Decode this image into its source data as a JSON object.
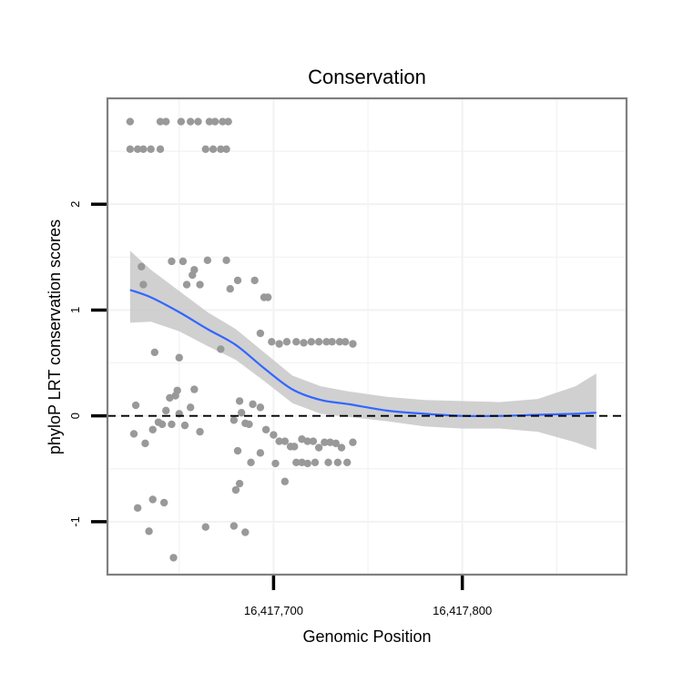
{
  "chart_data": {
    "type": "scatter",
    "title": "Conservation",
    "xlabel": "Genomic Position",
    "ylabel": "phyloP LRT conservation scores",
    "xlim": [
      16417612,
      16417887
    ],
    "ylim": [
      -1.5,
      3.0
    ],
    "x_ticks": [
      {
        "value": 16417700,
        "label": "16,417,700"
      },
      {
        "value": 16417800,
        "label": "16,417,800"
      }
    ],
    "y_ticks": [
      {
        "value": -1,
        "label": "-1"
      },
      {
        "value": 0,
        "label": "0"
      },
      {
        "value": 1,
        "label": "1"
      },
      {
        "value": 2,
        "label": "2"
      }
    ],
    "reference_line": {
      "y": 0,
      "style": "dashed"
    },
    "grid": true,
    "colors": {
      "points": "#999999",
      "smooth": "#3366FF",
      "ribbon": "#C8C8C8",
      "panel_border": "#7F7F7F",
      "grid": "#F2F2F2"
    },
    "points": [
      {
        "x": 16417624,
        "y": 2.78
      },
      {
        "x": 16417640,
        "y": 2.78
      },
      {
        "x": 16417643,
        "y": 2.78
      },
      {
        "x": 16417651,
        "y": 2.78
      },
      {
        "x": 16417656,
        "y": 2.78
      },
      {
        "x": 16417660,
        "y": 2.78
      },
      {
        "x": 16417666,
        "y": 2.78
      },
      {
        "x": 16417669,
        "y": 2.78
      },
      {
        "x": 16417673,
        "y": 2.78
      },
      {
        "x": 16417676,
        "y": 2.78
      },
      {
        "x": 16417624,
        "y": 2.52
      },
      {
        "x": 16417628,
        "y": 2.52
      },
      {
        "x": 16417631,
        "y": 2.52
      },
      {
        "x": 16417635,
        "y": 2.52
      },
      {
        "x": 16417640,
        "y": 2.52
      },
      {
        "x": 16417664,
        "y": 2.52
      },
      {
        "x": 16417668,
        "y": 2.52
      },
      {
        "x": 16417672,
        "y": 2.52
      },
      {
        "x": 16417675,
        "y": 2.52
      },
      {
        "x": 16417630,
        "y": 1.41
      },
      {
        "x": 16417631,
        "y": 1.24
      },
      {
        "x": 16417646,
        "y": 1.46
      },
      {
        "x": 16417652,
        "y": 1.46
      },
      {
        "x": 16417658,
        "y": 1.38
      },
      {
        "x": 16417657,
        "y": 1.33
      },
      {
        "x": 16417654,
        "y": 1.24
      },
      {
        "x": 16417661,
        "y": 1.24
      },
      {
        "x": 16417665,
        "y": 1.47
      },
      {
        "x": 16417675,
        "y": 1.47
      },
      {
        "x": 16417677,
        "y": 1.2
      },
      {
        "x": 16417681,
        "y": 1.28
      },
      {
        "x": 16417690,
        "y": 1.28
      },
      {
        "x": 16417695,
        "y": 1.12
      },
      {
        "x": 16417697,
        "y": 1.12
      },
      {
        "x": 16417672,
        "y": 0.63
      },
      {
        "x": 16417693,
        "y": 0.78
      },
      {
        "x": 16417699,
        "y": 0.7
      },
      {
        "x": 16417703,
        "y": 0.68
      },
      {
        "x": 16417707,
        "y": 0.7
      },
      {
        "x": 16417712,
        "y": 0.7
      },
      {
        "x": 16417716,
        "y": 0.69
      },
      {
        "x": 16417720,
        "y": 0.7
      },
      {
        "x": 16417724,
        "y": 0.7
      },
      {
        "x": 16417728,
        "y": 0.7
      },
      {
        "x": 16417731,
        "y": 0.7
      },
      {
        "x": 16417735,
        "y": 0.7
      },
      {
        "x": 16417738,
        "y": 0.7
      },
      {
        "x": 16417742,
        "y": 0.68
      },
      {
        "x": 16417637,
        "y": 0.6
      },
      {
        "x": 16417650,
        "y": 0.55
      },
      {
        "x": 16417627,
        "y": 0.1
      },
      {
        "x": 16417626,
        "y": -0.17
      },
      {
        "x": 16417632,
        "y": -0.26
      },
      {
        "x": 16417636,
        "y": -0.13
      },
      {
        "x": 16417639,
        "y": -0.06
      },
      {
        "x": 16417641,
        "y": -0.08
      },
      {
        "x": 16417643,
        "y": 0.05
      },
      {
        "x": 16417645,
        "y": 0.17
      },
      {
        "x": 16417646,
        "y": -0.08
      },
      {
        "x": 16417648,
        "y": 0.19
      },
      {
        "x": 16417649,
        "y": 0.24
      },
      {
        "x": 16417650,
        "y": 0.02
      },
      {
        "x": 16417653,
        "y": -0.09
      },
      {
        "x": 16417656,
        "y": 0.08
      },
      {
        "x": 16417658,
        "y": 0.25
      },
      {
        "x": 16417661,
        "y": -0.15
      },
      {
        "x": 16417679,
        "y": -0.04
      },
      {
        "x": 16417682,
        "y": 0.14
      },
      {
        "x": 16417683,
        "y": 0.03
      },
      {
        "x": 16417685,
        "y": -0.07
      },
      {
        "x": 16417687,
        "y": -0.08
      },
      {
        "x": 16417689,
        "y": 0.11
      },
      {
        "x": 16417693,
        "y": 0.08
      },
      {
        "x": 16417696,
        "y": -0.13
      },
      {
        "x": 16417700,
        "y": -0.18
      },
      {
        "x": 16417703,
        "y": -0.24
      },
      {
        "x": 16417706,
        "y": -0.24
      },
      {
        "x": 16417709,
        "y": -0.29
      },
      {
        "x": 16417711,
        "y": -0.29
      },
      {
        "x": 16417715,
        "y": -0.22
      },
      {
        "x": 16417718,
        "y": -0.24
      },
      {
        "x": 16417721,
        "y": -0.24
      },
      {
        "x": 16417724,
        "y": -0.3
      },
      {
        "x": 16417727,
        "y": -0.25
      },
      {
        "x": 16417730,
        "y": -0.25
      },
      {
        "x": 16417733,
        "y": -0.26
      },
      {
        "x": 16417736,
        "y": -0.3
      },
      {
        "x": 16417742,
        "y": -0.25
      },
      {
        "x": 16417681,
        "y": -0.33
      },
      {
        "x": 16417688,
        "y": -0.44
      },
      {
        "x": 16417693,
        "y": -0.35
      },
      {
        "x": 16417701,
        "y": -0.45
      },
      {
        "x": 16417712,
        "y": -0.44
      },
      {
        "x": 16417715,
        "y": -0.44
      },
      {
        "x": 16417718,
        "y": -0.45
      },
      {
        "x": 16417722,
        "y": -0.44
      },
      {
        "x": 16417729,
        "y": -0.44
      },
      {
        "x": 16417734,
        "y": -0.44
      },
      {
        "x": 16417739,
        "y": -0.44
      },
      {
        "x": 16417706,
        "y": -0.62
      },
      {
        "x": 16417682,
        "y": -0.64
      },
      {
        "x": 16417680,
        "y": -0.7
      },
      {
        "x": 16417628,
        "y": -0.87
      },
      {
        "x": 16417636,
        "y": -0.79
      },
      {
        "x": 16417642,
        "y": -0.82
      },
      {
        "x": 16417634,
        "y": -1.09
      },
      {
        "x": 16417664,
        "y": -1.05
      },
      {
        "x": 16417679,
        "y": -1.04
      },
      {
        "x": 16417685,
        "y": -1.1
      },
      {
        "x": 16417647,
        "y": -1.34
      }
    ],
    "smooth": [
      {
        "x": 16417624,
        "y": 1.19,
        "lo": 0.88,
        "hi": 1.56
      },
      {
        "x": 16417635,
        "y": 1.12,
        "lo": 0.89,
        "hi": 1.38
      },
      {
        "x": 16417650,
        "y": 0.98,
        "lo": 0.8,
        "hi": 1.18
      },
      {
        "x": 16417665,
        "y": 0.82,
        "lo": 0.66,
        "hi": 0.98
      },
      {
        "x": 16417680,
        "y": 0.67,
        "lo": 0.53,
        "hi": 0.82
      },
      {
        "x": 16417695,
        "y": 0.45,
        "lo": 0.33,
        "hi": 0.6
      },
      {
        "x": 16417710,
        "y": 0.25,
        "lo": 0.12,
        "hi": 0.38
      },
      {
        "x": 16417725,
        "y": 0.15,
        "lo": 0.02,
        "hi": 0.28
      },
      {
        "x": 16417740,
        "y": 0.11,
        "lo": -0.01,
        "hi": 0.23
      },
      {
        "x": 16417760,
        "y": 0.05,
        "lo": -0.05,
        "hi": 0.18
      },
      {
        "x": 16417780,
        "y": 0.02,
        "lo": -0.1,
        "hi": 0.15
      },
      {
        "x": 16417800,
        "y": 0.0,
        "lo": -0.12,
        "hi": 0.14
      },
      {
        "x": 16417820,
        "y": 0.0,
        "lo": -0.12,
        "hi": 0.13
      },
      {
        "x": 16417840,
        "y": 0.01,
        "lo": -0.15,
        "hi": 0.16
      },
      {
        "x": 16417860,
        "y": 0.02,
        "lo": -0.25,
        "hi": 0.28
      },
      {
        "x": 16417871,
        "y": 0.03,
        "lo": -0.32,
        "hi": 0.4
      }
    ]
  }
}
